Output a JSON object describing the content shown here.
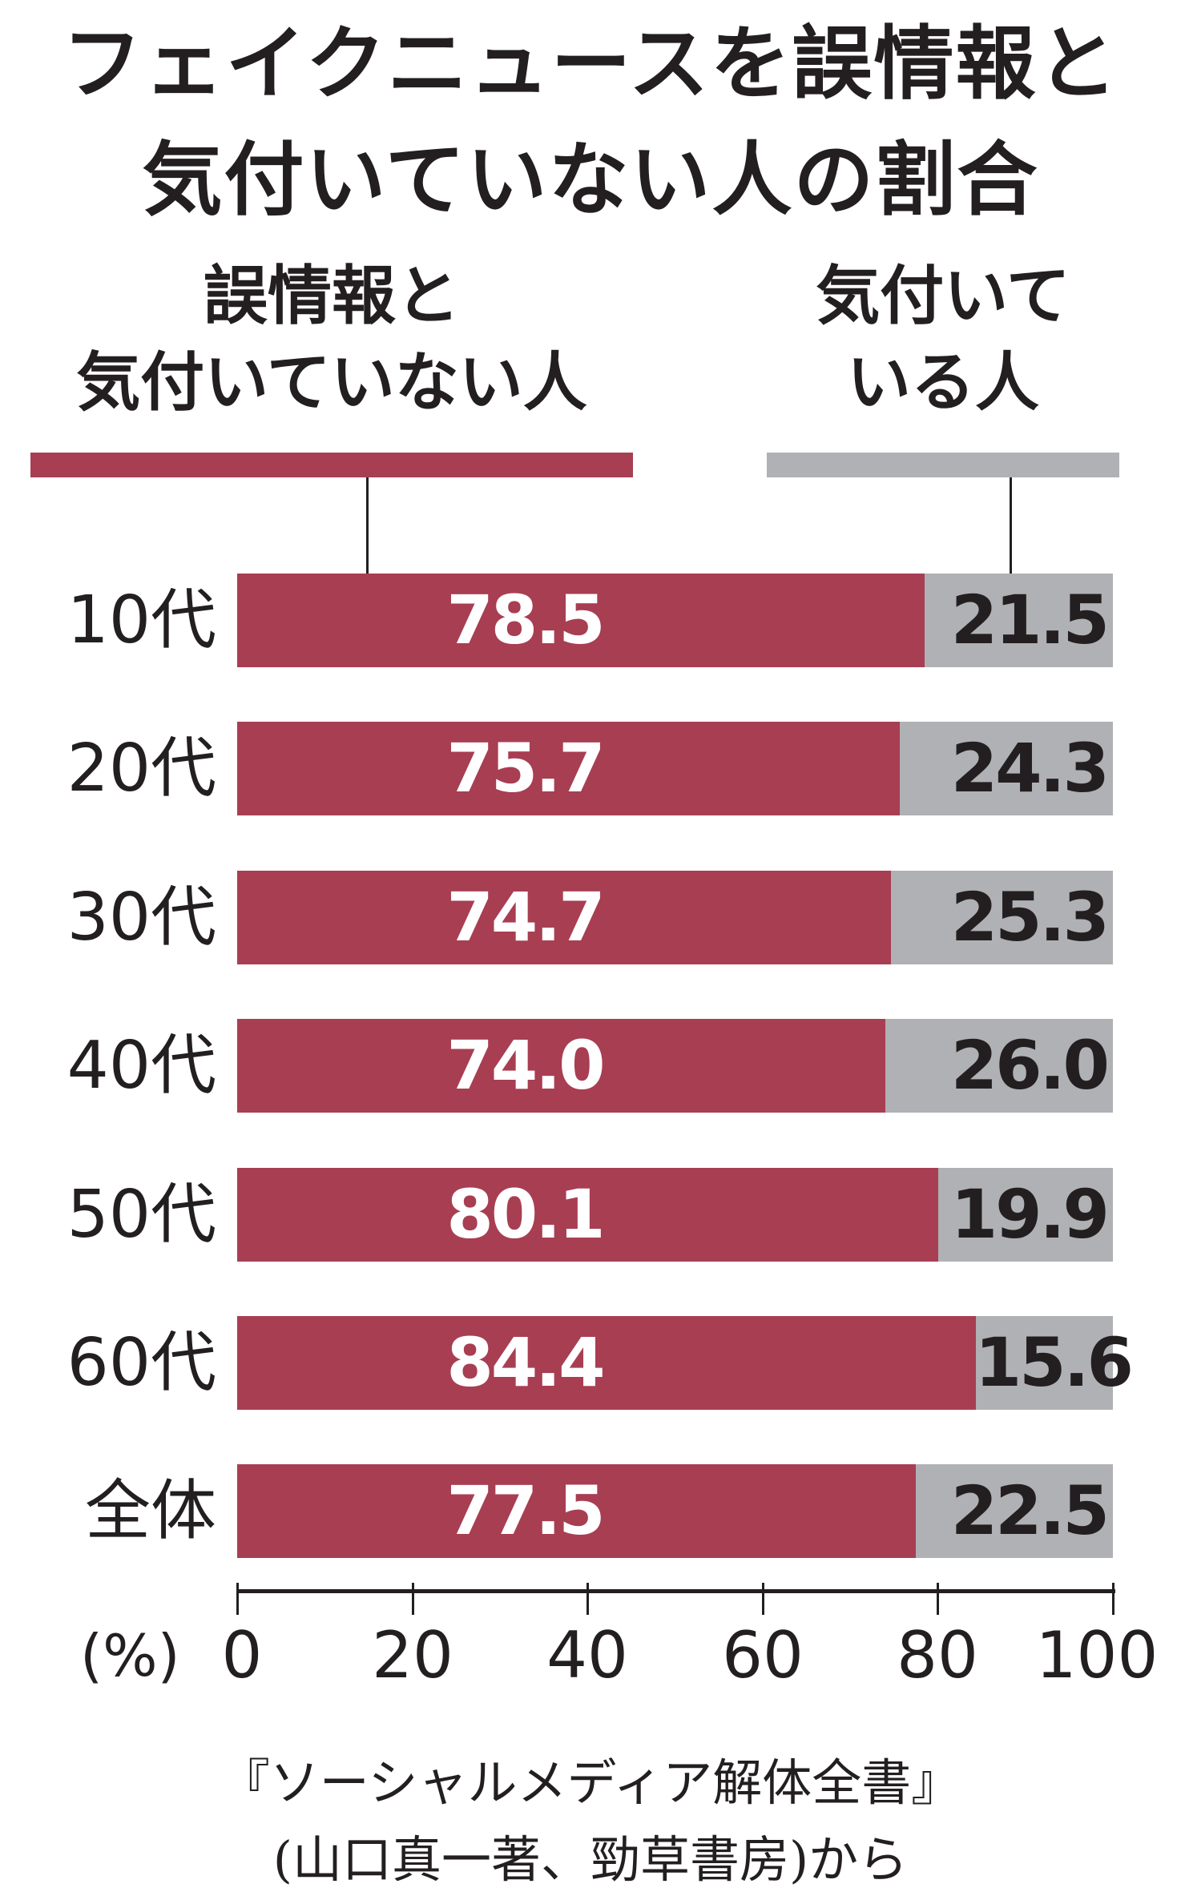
{
  "title": {
    "line1": "フェイクニュースを誤情報と",
    "line2": "気付いていない人の割合"
  },
  "legend": {
    "unaware": {
      "line1": "誤情報と",
      "line2": "気付いていない人",
      "color": "#A83E52"
    },
    "aware": {
      "line1": "気付いて",
      "line2": "いる人",
      "color": "#B0B1B4"
    }
  },
  "rows": [
    {
      "label": "10代",
      "unaware": "78.5",
      "aware": "21.5"
    },
    {
      "label": "20代",
      "unaware": "75.7",
      "aware": "24.3"
    },
    {
      "label": "30代",
      "unaware": "74.7",
      "aware": "25.3"
    },
    {
      "label": "40代",
      "unaware": "74.0",
      "aware": "26.0"
    },
    {
      "label": "50代",
      "unaware": "80.1",
      "aware": "19.9"
    },
    {
      "label": "60代",
      "unaware": "84.4",
      "aware": "15.6"
    },
    {
      "label": "全体",
      "unaware": "77.5",
      "aware": "22.5"
    }
  ],
  "axis": {
    "unit": "(%)",
    "ticks": [
      "0",
      "20",
      "40",
      "60",
      "80",
      "100"
    ]
  },
  "source": {
    "line1": "『ソーシャルメディア解体全書』",
    "line2": "(山口真一著、勁草書房)から"
  },
  "chart_data": {
    "type": "bar",
    "orientation": "horizontal",
    "stacked": true,
    "title": "フェイクニュースを誤情報と気付いていない人の割合",
    "categories": [
      "10代",
      "20代",
      "30代",
      "40代",
      "50代",
      "60代",
      "全体"
    ],
    "series": [
      {
        "name": "誤情報と気付いていない人",
        "color": "#A83E52",
        "values": [
          78.5,
          75.7,
          74.7,
          74.0,
          80.1,
          84.4,
          77.5
        ]
      },
      {
        "name": "気付いている人",
        "color": "#B0B1B4",
        "values": [
          21.5,
          24.3,
          25.3,
          26.0,
          19.9,
          15.6,
          22.5
        ]
      }
    ],
    "xlabel": "(%)",
    "ylabel": "",
    "xlim": [
      0,
      100
    ],
    "xticks": [
      0,
      20,
      40,
      60,
      80,
      100
    ],
    "grid": false,
    "legend_position": "top",
    "source": "『ソーシャルメディア解体全書』(山口真一著、勁草書房)から"
  }
}
